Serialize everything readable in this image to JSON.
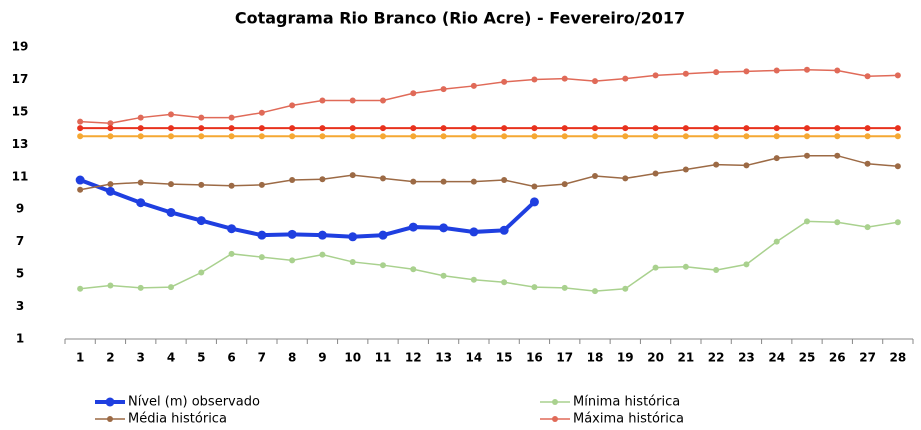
{
  "chart_data": {
    "type": "line",
    "title": "Cotagrama Rio Branco (Rio Acre) - Fevereiro/2017",
    "categories": [
      "1",
      "2",
      "3",
      "4",
      "5",
      "6",
      "7",
      "8",
      "9",
      "10",
      "11",
      "12",
      "13",
      "14",
      "15",
      "16",
      "17",
      "18",
      "19",
      "20",
      "21",
      "22",
      "23",
      "24",
      "25",
      "26",
      "27",
      "28"
    ],
    "ylim": [
      1,
      19
    ],
    "yticks": [
      1,
      3,
      5,
      7,
      9,
      11,
      13,
      15,
      17,
      19
    ],
    "grid": false,
    "series": [
      {
        "name": "Nível (m) observado",
        "color": "#1f3fe0",
        "width": 4,
        "values": [
          10.8,
          10.1,
          9.4,
          8.8,
          8.3,
          7.8,
          7.4,
          7.45,
          7.4,
          7.3,
          7.4,
          7.9,
          7.85,
          7.6,
          7.7,
          9.45,
          null,
          null,
          null,
          null,
          null,
          null,
          null,
          null,
          null,
          null,
          null,
          null
        ]
      },
      {
        "name": "Mínima histórica",
        "color": "#a9d18e",
        "width": 1.5,
        "values": [
          4.1,
          4.3,
          4.15,
          4.2,
          5.1,
          6.25,
          6.05,
          5.85,
          6.2,
          5.75,
          5.55,
          5.3,
          4.9,
          4.65,
          4.5,
          4.2,
          4.15,
          3.95,
          4.1,
          5.4,
          5.45,
          5.25,
          5.6,
          7.0,
          8.25,
          8.2,
          7.9,
          8.2
        ]
      },
      {
        "name": "Média histórica",
        "color": "#9c6a45",
        "width": 1.5,
        "values": [
          10.2,
          10.55,
          10.65,
          10.55,
          10.5,
          10.45,
          10.5,
          10.8,
          10.85,
          11.1,
          10.9,
          10.7,
          10.7,
          10.7,
          10.8,
          10.4,
          10.55,
          11.05,
          10.9,
          11.2,
          11.45,
          11.75,
          11.7,
          12.15,
          12.3,
          12.3,
          11.8,
          11.65
        ]
      },
      {
        "name": "Máxima histórica",
        "color": "#e06a58",
        "width": 1.5,
        "values": [
          14.4,
          14.3,
          14.65,
          14.85,
          14.65,
          14.65,
          14.95,
          15.4,
          15.7,
          15.7,
          15.7,
          16.15,
          16.4,
          16.6,
          16.85,
          17.0,
          17.05,
          16.9,
          17.05,
          17.25,
          17.35,
          17.45,
          17.5,
          17.55,
          17.6,
          17.55,
          17.2,
          17.25
        ]
      },
      {
        "color": "#e8321e",
        "width": 2,
        "values": [
          14,
          14,
          14,
          14,
          14,
          14,
          14,
          14,
          14,
          14,
          14,
          14,
          14,
          14,
          14,
          14,
          14,
          14,
          14,
          14,
          14,
          14,
          14,
          14,
          14,
          14,
          14,
          14
        ]
      },
      {
        "color": "#f5a833",
        "width": 2,
        "values": [
          13.5,
          13.5,
          13.5,
          13.5,
          13.5,
          13.5,
          13.5,
          13.5,
          13.5,
          13.5,
          13.5,
          13.5,
          13.5,
          13.5,
          13.5,
          13.5,
          13.5,
          13.5,
          13.5,
          13.5,
          13.5,
          13.5,
          13.5,
          13.5,
          13.5,
          13.5,
          13.5,
          13.5
        ]
      }
    ]
  }
}
